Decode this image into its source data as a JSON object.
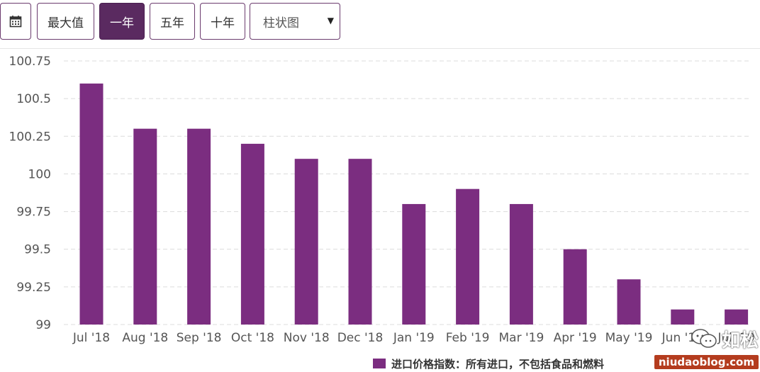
{
  "toolbar": {
    "calendar_icon": "calendar-icon",
    "max_label": "最大值",
    "one_year_label": "一年",
    "five_year_label": "五年",
    "ten_year_label": "十年",
    "chart_type_label": "柱状图",
    "active_range": "一年"
  },
  "colors": {
    "bar": "#7b2d80",
    "active_button": "#5a2a60",
    "watermark_badge": "#b43c1e"
  },
  "chart_data": {
    "type": "bar",
    "categories": [
      "Jul '18",
      "Aug '18",
      "Sep '18",
      "Oct '18",
      "Nov '18",
      "Dec '18",
      "Jan '19",
      "Feb '19",
      "Mar '19",
      "Apr '19",
      "May '19",
      "Jun '19",
      "Jul '19"
    ],
    "series": [
      {
        "name": "进口价格指数：所有进口，不包括食品和燃料",
        "values": [
          100.6,
          100.3,
          100.3,
          100.2,
          100.1,
          100.1,
          99.8,
          99.9,
          99.8,
          99.5,
          99.3,
          99.1,
          99.1
        ]
      }
    ],
    "ylim": [
      99,
      100.75
    ],
    "yticks": [
      "99",
      "99.25",
      "99.5",
      "99.75",
      "100",
      "100.25",
      "100.5",
      "100.75"
    ],
    "grid": true,
    "legend_position": "bottom"
  },
  "watermark": {
    "name": "如松",
    "url": "niudaoblog.com"
  }
}
